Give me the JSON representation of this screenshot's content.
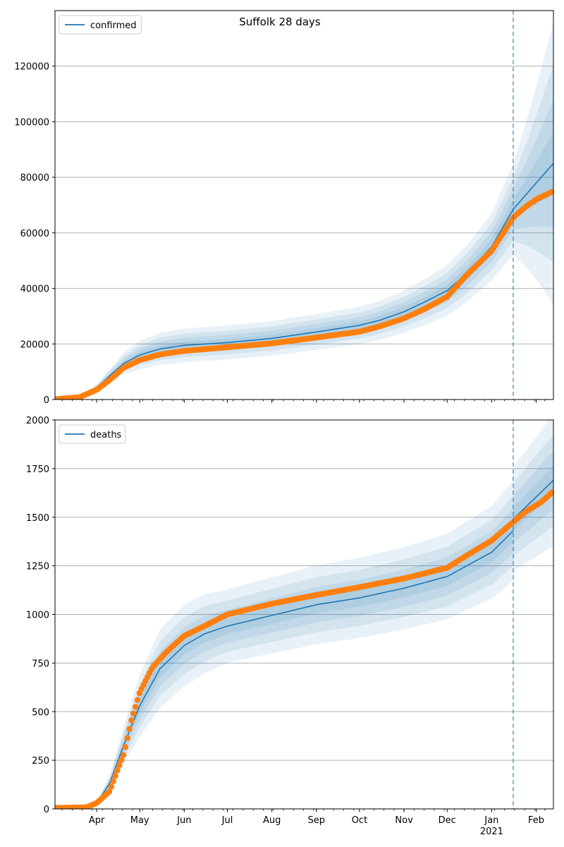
{
  "figure": {
    "title": "Suffolk 28 days"
  },
  "chart_data": [
    {
      "type": "line",
      "legend": "confirmed",
      "legend_position": "top-left",
      "grid": "horizontal",
      "xlim": [
        "2020-03-03",
        "2021-02-13"
      ],
      "ylim": [
        0,
        140000
      ],
      "yticks": [
        0,
        20000,
        40000,
        60000,
        80000,
        100000,
        120000
      ],
      "forecast_start": "2021-01-16",
      "model_mean": [
        [
          "2020-03-03",
          100
        ],
        [
          "2020-03-20",
          1200
        ],
        [
          "2020-04-01",
          4200
        ],
        [
          "2020-04-10",
          8500
        ],
        [
          "2020-04-20",
          13000
        ],
        [
          "2020-05-01",
          16000
        ],
        [
          "2020-05-15",
          18200
        ],
        [
          "2020-06-01",
          19500
        ],
        [
          "2020-07-01",
          20500
        ],
        [
          "2020-08-01",
          22000
        ],
        [
          "2020-09-01",
          24300
        ],
        [
          "2020-10-01",
          26700
        ],
        [
          "2020-10-15",
          28500
        ],
        [
          "2020-11-01",
          31600
        ],
        [
          "2020-11-15",
          35000
        ],
        [
          "2020-12-01",
          39200
        ],
        [
          "2020-12-15",
          45500
        ],
        [
          "2021-01-01",
          55000
        ],
        [
          "2021-01-16",
          68500
        ],
        [
          "2021-02-13",
          85000
        ]
      ],
      "band_width_pct": [
        [
          "2020-03-03",
          0.05
        ],
        [
          "2020-04-01",
          0.28
        ],
        [
          "2020-05-01",
          0.32
        ],
        [
          "2020-07-01",
          0.3
        ],
        [
          "2020-10-01",
          0.25
        ],
        [
          "2021-01-01",
          0.22
        ],
        [
          "2021-01-16",
          0.24
        ],
        [
          "2021-02-13",
          0.6
        ]
      ],
      "observed": [
        [
          "2020-03-03",
          100
        ],
        [
          "2020-03-20",
          800
        ],
        [
          "2020-04-01",
          3500
        ],
        [
          "2020-04-10",
          7000
        ],
        [
          "2020-04-20",
          11500
        ],
        [
          "2020-05-01",
          14200
        ],
        [
          "2020-05-15",
          16200
        ],
        [
          "2020-06-01",
          17500
        ],
        [
          "2020-07-01",
          18800
        ],
        [
          "2020-08-01",
          20200
        ],
        [
          "2020-09-01",
          22300
        ],
        [
          "2020-10-01",
          24400
        ],
        [
          "2020-10-15",
          26300
        ],
        [
          "2020-11-01",
          29200
        ],
        [
          "2020-11-15",
          32500
        ],
        [
          "2020-12-01",
          37000
        ],
        [
          "2020-12-15",
          45000
        ],
        [
          "2021-01-01",
          53500
        ],
        [
          "2021-01-16",
          65500
        ],
        [
          "2021-01-25",
          69500
        ],
        [
          "2021-02-01",
          72000
        ],
        [
          "2021-02-13",
          75000
        ]
      ]
    },
    {
      "type": "line",
      "legend": "deaths",
      "legend_position": "top-left",
      "grid": "horizontal",
      "xlim": [
        "2020-03-03",
        "2021-02-13"
      ],
      "ylim": [
        0,
        2000
      ],
      "yticks": [
        0,
        250,
        500,
        750,
        1000,
        1250,
        1500,
        1750,
        2000
      ],
      "forecast_start": "2021-01-16",
      "model_mean": [
        [
          "2020-03-03",
          0
        ],
        [
          "2020-03-20",
          5
        ],
        [
          "2020-04-01",
          30
        ],
        [
          "2020-04-10",
          130
        ],
        [
          "2020-04-20",
          330
        ],
        [
          "2020-05-01",
          530
        ],
        [
          "2020-05-15",
          720
        ],
        [
          "2020-06-01",
          840
        ],
        [
          "2020-06-15",
          900
        ],
        [
          "2020-07-01",
          940
        ],
        [
          "2020-08-01",
          995
        ],
        [
          "2020-09-01",
          1050
        ],
        [
          "2020-10-01",
          1085
        ],
        [
          "2020-11-01",
          1135
        ],
        [
          "2020-12-01",
          1195
        ],
        [
          "2021-01-01",
          1320
        ],
        [
          "2021-01-16",
          1430
        ],
        [
          "2021-01-16",
          1490
        ],
        [
          "2021-02-13",
          1690
        ]
      ],
      "band_width_pct": [
        [
          "2020-03-03",
          0.05
        ],
        [
          "2020-04-01",
          0.3
        ],
        [
          "2020-05-01",
          0.3
        ],
        [
          "2020-07-01",
          0.2
        ],
        [
          "2021-01-01",
          0.18
        ],
        [
          "2021-01-16",
          0.18
        ],
        [
          "2021-02-13",
          0.2
        ]
      ],
      "observed": [
        [
          "2020-03-03",
          5
        ],
        [
          "2020-03-25",
          8
        ],
        [
          "2020-04-01",
          30
        ],
        [
          "2020-04-10",
          90
        ],
        [
          "2020-04-15",
          190
        ],
        [
          "2020-04-20",
          285
        ],
        [
          "2020-04-25",
          450
        ],
        [
          "2020-05-01",
          600
        ],
        [
          "2020-05-10",
          730
        ],
        [
          "2020-05-20",
          810
        ],
        [
          "2020-06-01",
          890
        ],
        [
          "2020-06-15",
          940
        ],
        [
          "2020-07-01",
          1000
        ],
        [
          "2020-08-01",
          1055
        ],
        [
          "2020-09-01",
          1100
        ],
        [
          "2020-10-01",
          1140
        ],
        [
          "2020-11-01",
          1185
        ],
        [
          "2020-12-01",
          1240
        ],
        [
          "2020-12-15",
          1305
        ],
        [
          "2021-01-01",
          1380
        ],
        [
          "2021-01-16",
          1475
        ],
        [
          "2021-01-25",
          1530
        ],
        [
          "2021-02-05",
          1580
        ],
        [
          "2021-02-13",
          1635
        ]
      ]
    }
  ],
  "xaxis": {
    "month_ticks": [
      {
        "date": "2020-04-01",
        "label": "Apr"
      },
      {
        "date": "2020-05-01",
        "label": "May"
      },
      {
        "date": "2020-06-01",
        "label": "Jun"
      },
      {
        "date": "2020-07-01",
        "label": "Jul"
      },
      {
        "date": "2020-08-01",
        "label": "Aug"
      },
      {
        "date": "2020-09-01",
        "label": "Sep"
      },
      {
        "date": "2020-10-01",
        "label": "Oct"
      },
      {
        "date": "2020-11-01",
        "label": "Nov"
      },
      {
        "date": "2020-12-01",
        "label": "Dec"
      },
      {
        "date": "2021-01-01",
        "label": "Jan"
      },
      {
        "date": "2021-02-01",
        "label": "Feb"
      }
    ],
    "year_label": {
      "date": "2021-01-01",
      "label": "2021"
    }
  },
  "colors": {
    "model": "#1f77b4",
    "band": "#1f77b4",
    "observed": "#ff7f0e",
    "grid": "#b0b0b0",
    "forecast_line": "#1f77b4"
  }
}
